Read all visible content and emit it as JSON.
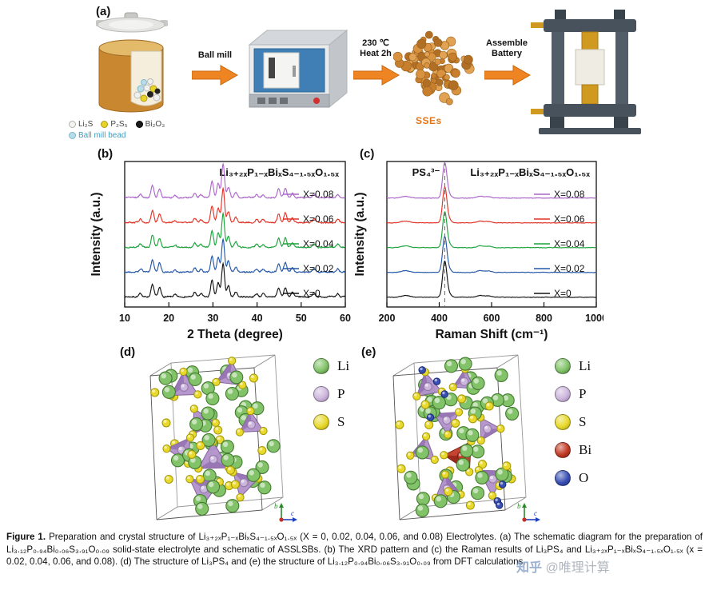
{
  "panels": {
    "a": "(a)",
    "b": "(b)",
    "c": "(c)",
    "d": "(d)",
    "e": "(e)"
  },
  "schematic": {
    "arrow1_label": "Ball mill",
    "arrow2_line1": "230 ℃",
    "arrow2_line2": "Heat 2h",
    "arrow3_line1": "Assemble",
    "arrow3_line2": "Battery",
    "sses_label": "SSEs",
    "materials_legend": [
      {
        "label": "Li₂S",
        "color": "#f4f4f2",
        "border": "#b0b0ac",
        "text_color": "#444444"
      },
      {
        "label": "P₂S₅",
        "color": "#e8d428",
        "border": "#b09c10",
        "text_color": "#444444"
      },
      {
        "label": "Bi₂O₃",
        "color": "#1a1a1a",
        "border": "#000000",
        "text_color": "#444444"
      },
      {
        "label": "Ball mill bead",
        "color": "#b8dde8",
        "border": "#7ab8cc",
        "text_color": "#3a9ec2"
      }
    ],
    "sses_colors": [
      "#d9923f",
      "#c77f2e",
      "#e2a253",
      "#b06f24"
    ]
  },
  "chart_data": [
    {
      "type": "line",
      "id": "xrd",
      "title": "Li₃₊₂ₓP₁₋ₓBiₓS₄₋₁.₅ₓO₁.₅ₓ",
      "xlabel": "2 Theta (degree)",
      "ylabel": "Intensity (a.u.)",
      "xlim": [
        10,
        60
      ],
      "xticks": [
        10,
        20,
        30,
        40,
        50,
        60
      ],
      "grid": false,
      "legend_position": "right-inline",
      "series": [
        {
          "name": "X=0",
          "color": "#141414"
        },
        {
          "name": "X=0.02",
          "color": "#2457a8"
        },
        {
          "name": "X=0.04",
          "color": "#1fa33d"
        },
        {
          "name": "X=0.06",
          "color": "#e23428"
        },
        {
          "name": "X=0.08",
          "color": "#ab67c9"
        }
      ],
      "peaks": [
        {
          "x": 13.6,
          "h": 0.1
        },
        {
          "x": 16.3,
          "h": 0.36
        },
        {
          "x": 17.9,
          "h": 0.27
        },
        {
          "x": 21.4,
          "h": 0.06
        },
        {
          "x": 25.9,
          "h": 0.13
        },
        {
          "x": 27.3,
          "h": 0.09
        },
        {
          "x": 29.8,
          "h": 0.48
        },
        {
          "x": 31.2,
          "h": 0.42
        },
        {
          "x": 32.3,
          "h": 1.0
        },
        {
          "x": 33.5,
          "h": 0.32
        },
        {
          "x": 35.2,
          "h": 0.15
        },
        {
          "x": 39.9,
          "h": 0.09
        },
        {
          "x": 41.4,
          "h": 0.09
        },
        {
          "x": 44.9,
          "h": 0.26
        },
        {
          "x": 46.4,
          "h": 0.28
        },
        {
          "x": 48.0,
          "h": 0.13
        },
        {
          "x": 52.9,
          "h": 0.11
        },
        {
          "x": 58.3,
          "h": 0.09
        }
      ],
      "peak_width": 0.32,
      "noise": 0.035
    },
    {
      "type": "line",
      "id": "raman",
      "title": "Li₃₊₂ₓP₁₋ₓBiₓS₄₋₁.₅ₓO₁.₅ₓ",
      "annotation": {
        "text": "PS₄³⁻",
        "x": 421
      },
      "dashed_line_x": 421,
      "xlabel": "Raman Shift (cm⁻¹)",
      "ylabel": "Intensity (a.u.)",
      "xlim": [
        200,
        1000
      ],
      "xticks": [
        200,
        400,
        600,
        800,
        1000
      ],
      "grid": false,
      "legend_position": "right-inline",
      "series": [
        {
          "name": "X=0",
          "color": "#141414"
        },
        {
          "name": "X=0.02",
          "color": "#2457a8"
        },
        {
          "name": "X=0.04",
          "color": "#1fa33d"
        },
        {
          "name": "X=0.06",
          "color": "#e23428"
        },
        {
          "name": "X=0.08",
          "color": "#ab67c9"
        }
      ],
      "peaks": [
        {
          "x": 271,
          "h": 0.05,
          "w": 16
        },
        {
          "x": 421,
          "h": 1.0,
          "w": 8
        },
        {
          "x": 437,
          "h": 0.09,
          "w": 9
        },
        {
          "x": 556,
          "h": 0.05,
          "w": 12
        },
        {
          "x": 588,
          "h": 0.04,
          "w": 12
        }
      ],
      "peak_width": 10,
      "noise": 0.012
    }
  ],
  "crystal_d": {
    "legend": [
      {
        "label": "Li",
        "body": "#82c36a",
        "edge": "#447a30"
      },
      {
        "label": "P",
        "body": "#cdb6dc",
        "edge": "#927aa8"
      },
      {
        "label": "S",
        "body": "#e8d92c",
        "edge": "#a89b0a"
      }
    ],
    "tetra": {
      "fill": "#b292cc",
      "facet": "#9470b0",
      "stroke": "#7c5a96"
    }
  },
  "crystal_e": {
    "legend": [
      {
        "label": "Li",
        "body": "#82c36a",
        "edge": "#447a30"
      },
      {
        "label": "P",
        "body": "#cdb6dc",
        "edge": "#927aa8"
      },
      {
        "label": "S",
        "body": "#e8d92c",
        "edge": "#a89b0a"
      },
      {
        "label": "Bi",
        "body": "#c23a24",
        "edge": "#7c1e10"
      },
      {
        "label": "O",
        "body": "#3a50b4",
        "edge": "#1c2c78"
      }
    ],
    "tetra": {
      "fill": "#b292cc",
      "facet": "#9470b0",
      "stroke": "#7c5a96"
    },
    "bi_tetra": {
      "fill": "#c33a28",
      "facet": "#93261a",
      "stroke": "#701c10"
    }
  },
  "crystal_axes": {
    "up": "b",
    "right": "c"
  },
  "caption": {
    "label": "Figure 1.",
    "text": "Preparation and crystal structure of Li₃₊₂ₓP₁₋ₓBiₓS₄₋₁.₅ₓO₁.₅ₓ (X = 0, 0.02, 0.04, 0.06, and 0.08) Electrolytes. (a) The schematic diagram for the preparation of Li₃.₁₂P₀.₉₄Bi₀.₀₆S₃.₉₁O₀.₀₉ solid-state electrolyte and schematic of ASSLSBs. (b) The XRD pattern and (c) the Raman results of Li₃PS₄ and Li₃₊₂ₓP₁₋ₓBiₓS₄₋₁.₅ₓO₁.₅ₓ (x = 0.02, 0.04, 0.06, and 0.08). (d) The structure of Li₃PS₄ and (e) the structure of Li₃.₁₂P₀.₉₄Bi₀.₀₆S₃.₉₁O₀.₀₉ from DFT calculations."
  },
  "watermark": {
    "brand": "知乎",
    "handle": "@唯理计算"
  }
}
